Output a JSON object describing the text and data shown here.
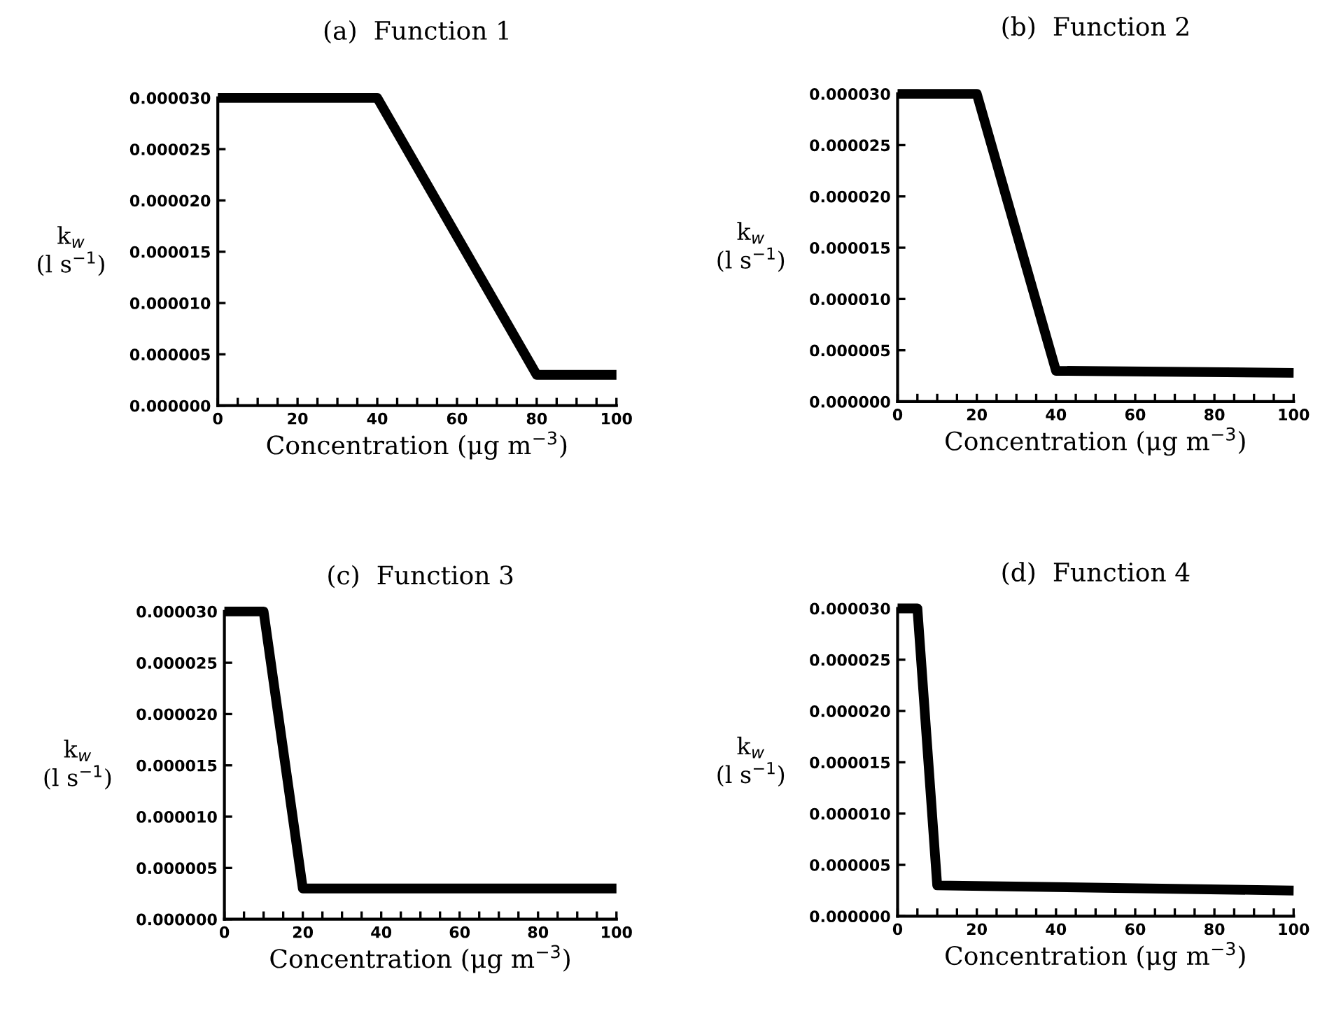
{
  "chart_data": [
    {
      "type": "line",
      "title": "(a)  Function 1",
      "xlabel": "Concentration (μg m$^{−3}$)",
      "ylabel": "k$_{w}$\n(l s$^{−1}$)",
      "x": [
        0,
        40,
        80,
        100
      ],
      "values": [
        3e-05,
        3e-05,
        3e-06,
        3e-06
      ],
      "color": "#000000",
      "xlim": [
        0,
        100
      ],
      "ylim": [
        0,
        3e-05
      ],
      "xticks": [
        0,
        {
          "value": 5,
          "label": null
        },
        {
          "value": 10,
          "label": null
        },
        {
          "value": 15,
          "label": null
        },
        20,
        {
          "value": 25,
          "label": null
        },
        {
          "value": 30,
          "label": null
        },
        {
          "value": 35,
          "label": null
        },
        40,
        {
          "value": 45,
          "label": null
        },
        {
          "value": 50,
          "label": null
        },
        {
          "value": 55,
          "label": null
        },
        60,
        {
          "value": 65,
          "label": null
        },
        {
          "value": 70,
          "label": null
        },
        {
          "value": 75,
          "label": null
        },
        80,
        {
          "value": 85,
          "label": null
        },
        {
          "value": 90,
          "label": null
        },
        {
          "value": 95,
          "label": null
        },
        100
      ],
      "yticks": [
        {
          "value": 0,
          "label": "0.000000"
        },
        {
          "value": 5e-06,
          "label": "0.000005"
        },
        {
          "value": 1e-05,
          "label": "0.000010"
        },
        {
          "value": 1.5e-05,
          "label": "0.000015"
        },
        {
          "value": 2e-05,
          "label": "0.000020"
        },
        {
          "value": 2.5e-05,
          "label": "0.000025"
        },
        {
          "value": 3e-05,
          "label": "0.000030"
        }
      ],
      "grid": false,
      "legend": false,
      "marker": "none",
      "line_style": "solid"
    },
    {
      "type": "line",
      "title": "(b)  Function 2",
      "xlabel": "Concentration (μg m$^{−3}$)",
      "ylabel": "k$_{w}$\n(l s$^{−1}$)",
      "x": [
        0,
        20,
        40,
        100
      ],
      "values": [
        3e-05,
        3e-05,
        3e-06,
        2.8e-06
      ],
      "color": "#000000",
      "xlim": [
        0,
        100
      ],
      "ylim": [
        0,
        3e-05
      ],
      "xticks": [
        0,
        {
          "value": 5,
          "label": null
        },
        {
          "value": 10,
          "label": null
        },
        {
          "value": 15,
          "label": null
        },
        20,
        {
          "value": 25,
          "label": null
        },
        {
          "value": 30,
          "label": null
        },
        {
          "value": 35,
          "label": null
        },
        40,
        {
          "value": 45,
          "label": null
        },
        {
          "value": 50,
          "label": null
        },
        {
          "value": 55,
          "label": null
        },
        60,
        {
          "value": 65,
          "label": null
        },
        {
          "value": 70,
          "label": null
        },
        {
          "value": 75,
          "label": null
        },
        80,
        {
          "value": 85,
          "label": null
        },
        {
          "value": 90,
          "label": null
        },
        {
          "value": 95,
          "label": null
        },
        100
      ],
      "yticks": [
        {
          "value": 0,
          "label": "0.000000"
        },
        {
          "value": 5e-06,
          "label": "0.000005"
        },
        {
          "value": 1e-05,
          "label": "0.000010"
        },
        {
          "value": 1.5e-05,
          "label": "0.000015"
        },
        {
          "value": 2e-05,
          "label": "0.000020"
        },
        {
          "value": 2.5e-05,
          "label": "0.000025"
        },
        {
          "value": 3e-05,
          "label": "0.000030"
        }
      ],
      "grid": false,
      "legend": false,
      "marker": "none",
      "line_style": "solid"
    },
    {
      "type": "line",
      "title": "(c)  Function 3",
      "xlabel": "Concentration (μg m$^{−3}$)",
      "ylabel": "k$_{w}$\n(l s$^{−1}$)",
      "x": [
        0,
        10,
        20,
        100
      ],
      "values": [
        3e-05,
        3e-05,
        3e-06,
        3e-06
      ],
      "color": "#000000",
      "xlim": [
        0,
        100
      ],
      "ylim": [
        0,
        3e-05
      ],
      "xticks": [
        0,
        {
          "value": 5,
          "label": null
        },
        {
          "value": 10,
          "label": null
        },
        {
          "value": 15,
          "label": null
        },
        20,
        {
          "value": 25,
          "label": null
        },
        {
          "value": 30,
          "label": null
        },
        {
          "value": 35,
          "label": null
        },
        40,
        {
          "value": 45,
          "label": null
        },
        {
          "value": 50,
          "label": null
        },
        {
          "value": 55,
          "label": null
        },
        60,
        {
          "value": 65,
          "label": null
        },
        {
          "value": 70,
          "label": null
        },
        {
          "value": 75,
          "label": null
        },
        80,
        {
          "value": 85,
          "label": null
        },
        {
          "value": 90,
          "label": null
        },
        {
          "value": 95,
          "label": null
        },
        100
      ],
      "yticks": [
        {
          "value": 0,
          "label": "0.000000"
        },
        {
          "value": 5e-06,
          "label": "0.000005"
        },
        {
          "value": 1e-05,
          "label": "0.000010"
        },
        {
          "value": 1.5e-05,
          "label": "0.000015"
        },
        {
          "value": 2e-05,
          "label": "0.000020"
        },
        {
          "value": 2.5e-05,
          "label": "0.000025"
        },
        {
          "value": 3e-05,
          "label": "0.000030"
        }
      ],
      "grid": false,
      "legend": false,
      "marker": "none",
      "line_style": "solid"
    },
    {
      "type": "line",
      "title": "(d)  Function 4",
      "xlabel": "Concentration (μg m$^{−3}$)",
      "ylabel": "k$_{w}$\n(l s$^{−1}$)",
      "x": [
        0,
        5,
        10,
        100
      ],
      "values": [
        3e-05,
        3e-05,
        3e-06,
        2.5e-06
      ],
      "color": "#000000",
      "xlim": [
        0,
        100
      ],
      "ylim": [
        0,
        3e-05
      ],
      "xticks": [
        0,
        {
          "value": 5,
          "label": null
        },
        {
          "value": 10,
          "label": null
        },
        {
          "value": 15,
          "label": null
        },
        20,
        {
          "value": 25,
          "label": null
        },
        {
          "value": 30,
          "label": null
        },
        {
          "value": 35,
          "label": null
        },
        40,
        {
          "value": 45,
          "label": null
        },
        {
          "value": 50,
          "label": null
        },
        {
          "value": 55,
          "label": null
        },
        60,
        {
          "value": 65,
          "label": null
        },
        {
          "value": 70,
          "label": null
        },
        {
          "value": 75,
          "label": null
        },
        80,
        {
          "value": 85,
          "label": null
        },
        {
          "value": 90,
          "label": null
        },
        {
          "value": 95,
          "label": null
        },
        100
      ],
      "yticks": [
        {
          "value": 0,
          "label": "0.000000"
        },
        {
          "value": 5e-06,
          "label": "0.000005"
        },
        {
          "value": 1e-05,
          "label": "0.000010"
        },
        {
          "value": 1.5e-05,
          "label": "0.000015"
        },
        {
          "value": 2e-05,
          "label": "0.000020"
        },
        {
          "value": 2.5e-05,
          "label": "0.000025"
        },
        {
          "value": 3e-05,
          "label": "0.000030"
        }
      ],
      "grid": false,
      "legend": false,
      "marker": "none",
      "line_style": "solid"
    }
  ]
}
